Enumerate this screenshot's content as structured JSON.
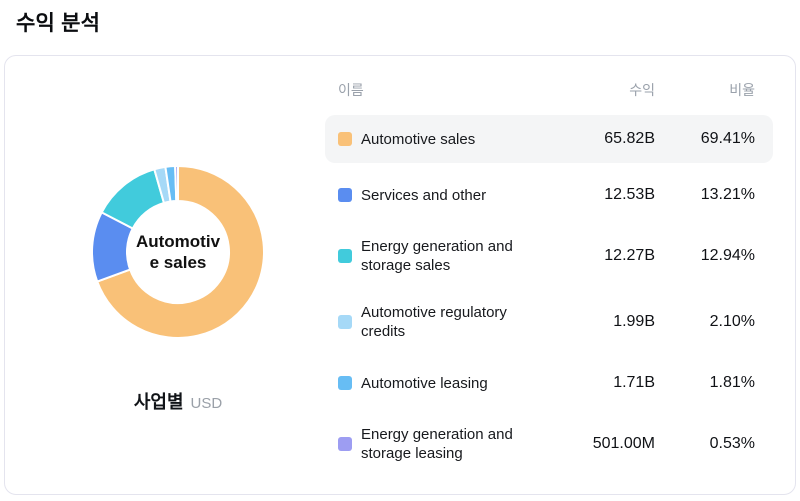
{
  "page_title": "수익 분석",
  "chart_data": {
    "type": "donut",
    "title": "수익 분석",
    "center_label": "Automotive sales",
    "center_label_lines": [
      "Automotiv",
      "e sales"
    ],
    "footer_label": "사업별",
    "footer_unit": "USD",
    "legend_position": "right-table",
    "categories": [
      "Automotive sales",
      "Services and other",
      "Energy generation and storage sales",
      "Automotive regulatory credits",
      "Automotive leasing",
      "Energy generation and storage leasing"
    ],
    "values_text": [
      "65.82B",
      "12.53B",
      "12.27B",
      "1.99B",
      "1.71B",
      "501.00M"
    ],
    "percents": [
      69.41,
      13.21,
      12.94,
      2.1,
      1.81,
      0.53
    ],
    "percent_text": [
      "69.41%",
      "13.21%",
      "12.94%",
      "2.10%",
      "1.81%",
      "0.53%"
    ],
    "colors": [
      "#f9c178",
      "#5a8df0",
      "#41cbdc",
      "#a6d9f7",
      "#67bdf4",
      "#9d9df2"
    ]
  },
  "table": {
    "headers": {
      "name": "이름",
      "revenue": "수익",
      "ratio": "비율"
    },
    "rows": [
      {
        "name": "Automotive sales",
        "revenue": "65.82B",
        "ratio": "69.41%",
        "color": "#f9c178",
        "highlighted": true
      },
      {
        "name": "Services and other",
        "revenue": "12.53B",
        "ratio": "13.21%",
        "color": "#5a8df0",
        "highlighted": false
      },
      {
        "name": "Energy generation and storage sales",
        "revenue": "12.27B",
        "ratio": "12.94%",
        "color": "#41cbdc",
        "highlighted": false
      },
      {
        "name": "Automotive regulatory credits",
        "revenue": "1.99B",
        "ratio": "2.10%",
        "color": "#a6d9f7",
        "highlighted": false
      },
      {
        "name": "Automotive leasing",
        "revenue": "1.71B",
        "ratio": "1.81%",
        "color": "#67bdf4",
        "highlighted": false
      },
      {
        "name": "Energy generation and storage leasing",
        "revenue": "501.00M",
        "ratio": "0.53%",
        "color": "#9d9df2",
        "highlighted": false
      }
    ]
  }
}
